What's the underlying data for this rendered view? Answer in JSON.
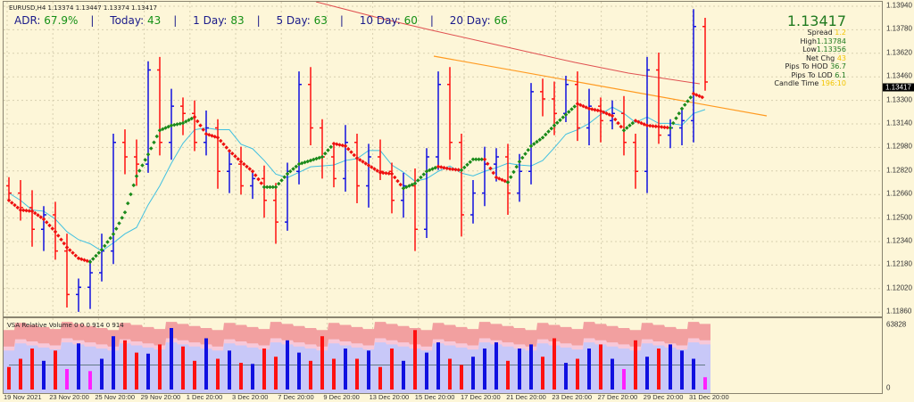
{
  "header": {
    "symbol_line": "EURUSD,H4  1.13374 1.13447 1.13374 1.13417"
  },
  "adr": {
    "adr_label": "ADR:",
    "adr_value": "67.9%",
    "today_label": "Today:",
    "today_value": "43",
    "d1_label": "1 Day:",
    "d1_value": "83",
    "d5_label": "5 Day:",
    "d5_value": "63",
    "d10_label": "10 Day:",
    "d10_value": "60",
    "d20_label": "20 Day:",
    "d20_value": "66",
    "separator": "|"
  },
  "info": {
    "price": "1.13417",
    "spread_label": "Spread",
    "spread_value": "1.2",
    "high_label": "High",
    "high_value": "1.13784",
    "low_label": "Low",
    "low_value": "1.13356",
    "netchg_label": "Net Chg",
    "netchg_value": "43",
    "hod_label": "Pips To HOD",
    "hod_value": "36.7",
    "lod_label": "Pips To LOD",
    "lod_value": "6.1",
    "candle_label": "Candle Time",
    "candle_value": "196:10"
  },
  "price_axis": {
    "labels": [
      "1.13940",
      "1.13780",
      "1.13620",
      "1.13460",
      "1.13300",
      "1.13140",
      "1.12980",
      "1.12820",
      "1.12660",
      "1.12500",
      "1.12340",
      "1.12180",
      "1.12020",
      "1.11860"
    ],
    "current": "1.13417"
  },
  "volume": {
    "title": "VSA Relative Volume 0 0 0 914 0 914",
    "axis_max": "63828",
    "axis_min": "0",
    "values": [
      22,
      30,
      40,
      28,
      38,
      20,
      45,
      18,
      30,
      52,
      48,
      36,
      35,
      44,
      60,
      42,
      28,
      50,
      30,
      38,
      26,
      25,
      40,
      32,
      48,
      36,
      28,
      52,
      30,
      40,
      30,
      38,
      22,
      40,
      28,
      58,
      36,
      46,
      30,
      24,
      32,
      40,
      46,
      28,
      40,
      44,
      32,
      50,
      26,
      30,
      40,
      44,
      30,
      20,
      48,
      32,
      40,
      44,
      38,
      30,
      12
    ],
    "colors": {
      "up": "#1010e0",
      "down": "#ff1010",
      "low": "#ff20ff",
      "band1": "#f2a0a0",
      "band2": "#f8c8d8",
      "band3": "#c8c8f8"
    }
  },
  "dates": [
    "19 Nov 2021",
    "23 Nov 20:00",
    "25 Nov 20:00",
    "29 Nov 20:00",
    "1 Dec 20:00",
    "3 Dec 20:00",
    "7 Dec 20:00",
    "9 Dec 20:00",
    "13 Dec 20:00",
    "15 Dec 20:00",
    "17 Dec 20:00",
    "21 Dec 20:00",
    "23 Dec 20:00",
    "27 Dec 20:00",
    "29 Dec 20:00",
    "31 Dec 20:00"
  ],
  "chart_data": {
    "type": "candlestick",
    "symbol": "EURUSD",
    "timeframe": "H4",
    "ylim": [
      1.1178,
      1.1398
    ],
    "closes": [
      1.1265,
      1.1255,
      1.124,
      1.125,
      1.1225,
      1.1195,
      1.12,
      1.121,
      1.1225,
      1.13,
      1.129,
      1.1285,
      1.135,
      1.13,
      1.1325,
      1.132,
      1.13,
      1.131,
      1.128,
      1.1285,
      1.127,
      1.1275,
      1.126,
      1.1245,
      1.128,
      1.134,
      1.131,
      1.129,
      1.1275,
      1.13,
      1.127,
      1.129,
      1.128,
      1.126,
      1.127,
      1.124,
      1.129,
      1.134,
      1.13,
      1.125,
      1.1265,
      1.1285,
      1.129,
      1.1265,
      1.128,
      1.1335,
      1.133,
      1.132,
      1.134,
      1.131,
      1.1325,
      1.1315,
      1.132,
      1.13,
      1.128,
      1.135,
      1.1305,
      1.131,
      1.1315,
      1.138,
      1.13417
    ],
    "colors": {
      "bull": "#1010e0",
      "bear": "#ff1010",
      "ma_slow": "#e05050",
      "ma_fast": "#40c0e0",
      "trendline": "#ff9a20",
      "signal_up": "#1a8a1a",
      "signal_down": "#ee1010"
    }
  }
}
